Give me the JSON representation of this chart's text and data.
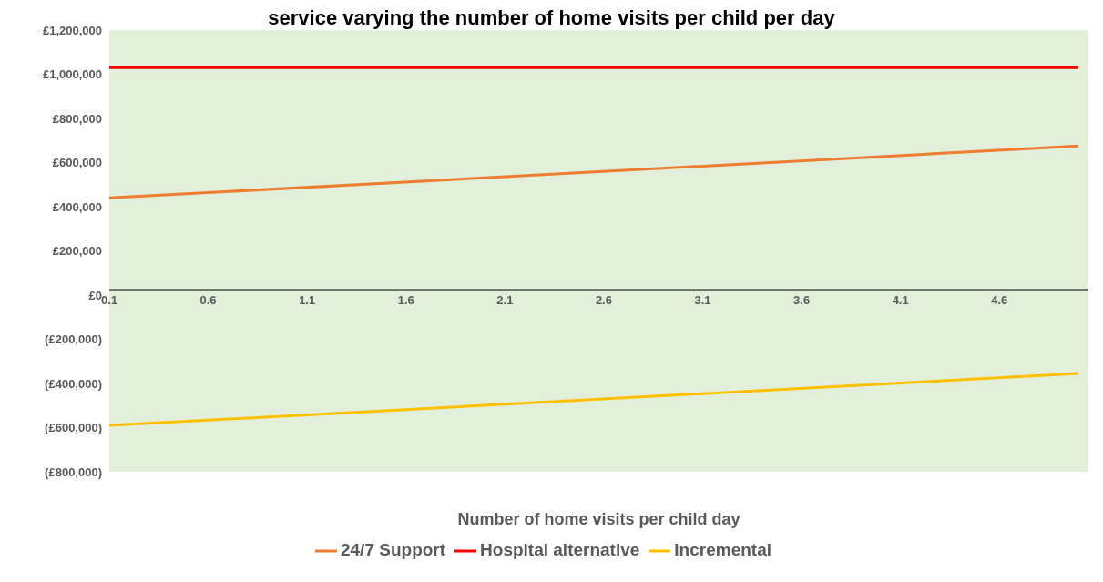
{
  "chart_data": {
    "type": "line",
    "title": "service varying the number of home visits per child per day",
    "xlabel": "Number of home visits per child day",
    "x": [
      0.1,
      5.0
    ],
    "series": [
      {
        "name": "24/7 Support",
        "color": "#ed7d31",
        "values": [
          440000,
          675000
        ]
      },
      {
        "name": "Hospital alternative",
        "color": "#ff0000",
        "values": [
          1030000,
          1030000
        ]
      },
      {
        "name": "Incremental",
        "color": "#ffc000",
        "values": [
          -590000,
          -355000
        ]
      }
    ],
    "xlim": [
      0.1,
      5.05
    ],
    "xticks": [
      0.1,
      0.6,
      1.1,
      1.6,
      2.1,
      2.6,
      3.1,
      3.6,
      4.1,
      4.6
    ],
    "ylim": [
      -800000,
      1200000
    ],
    "yticks": [
      {
        "value": -800000,
        "label": "(£800,000)"
      },
      {
        "value": -600000,
        "label": "(£600,000)"
      },
      {
        "value": -400000,
        "label": "(£400,000)"
      },
      {
        "value": -200000,
        "label": "(£200,000)"
      },
      {
        "value": 0,
        "label": "£0"
      },
      {
        "value": 200000,
        "label": "£200,000"
      },
      {
        "value": 400000,
        "label": "£400,000"
      },
      {
        "value": 600000,
        "label": "£600,000"
      },
      {
        "value": 800000,
        "label": "£800,000"
      },
      {
        "value": 1000000,
        "label": "£1,000,000"
      },
      {
        "value": 1200000,
        "label": "£1,200,000"
      }
    ],
    "grid": false,
    "legend": "bottom",
    "marker": "none",
    "line_style": "solid"
  }
}
